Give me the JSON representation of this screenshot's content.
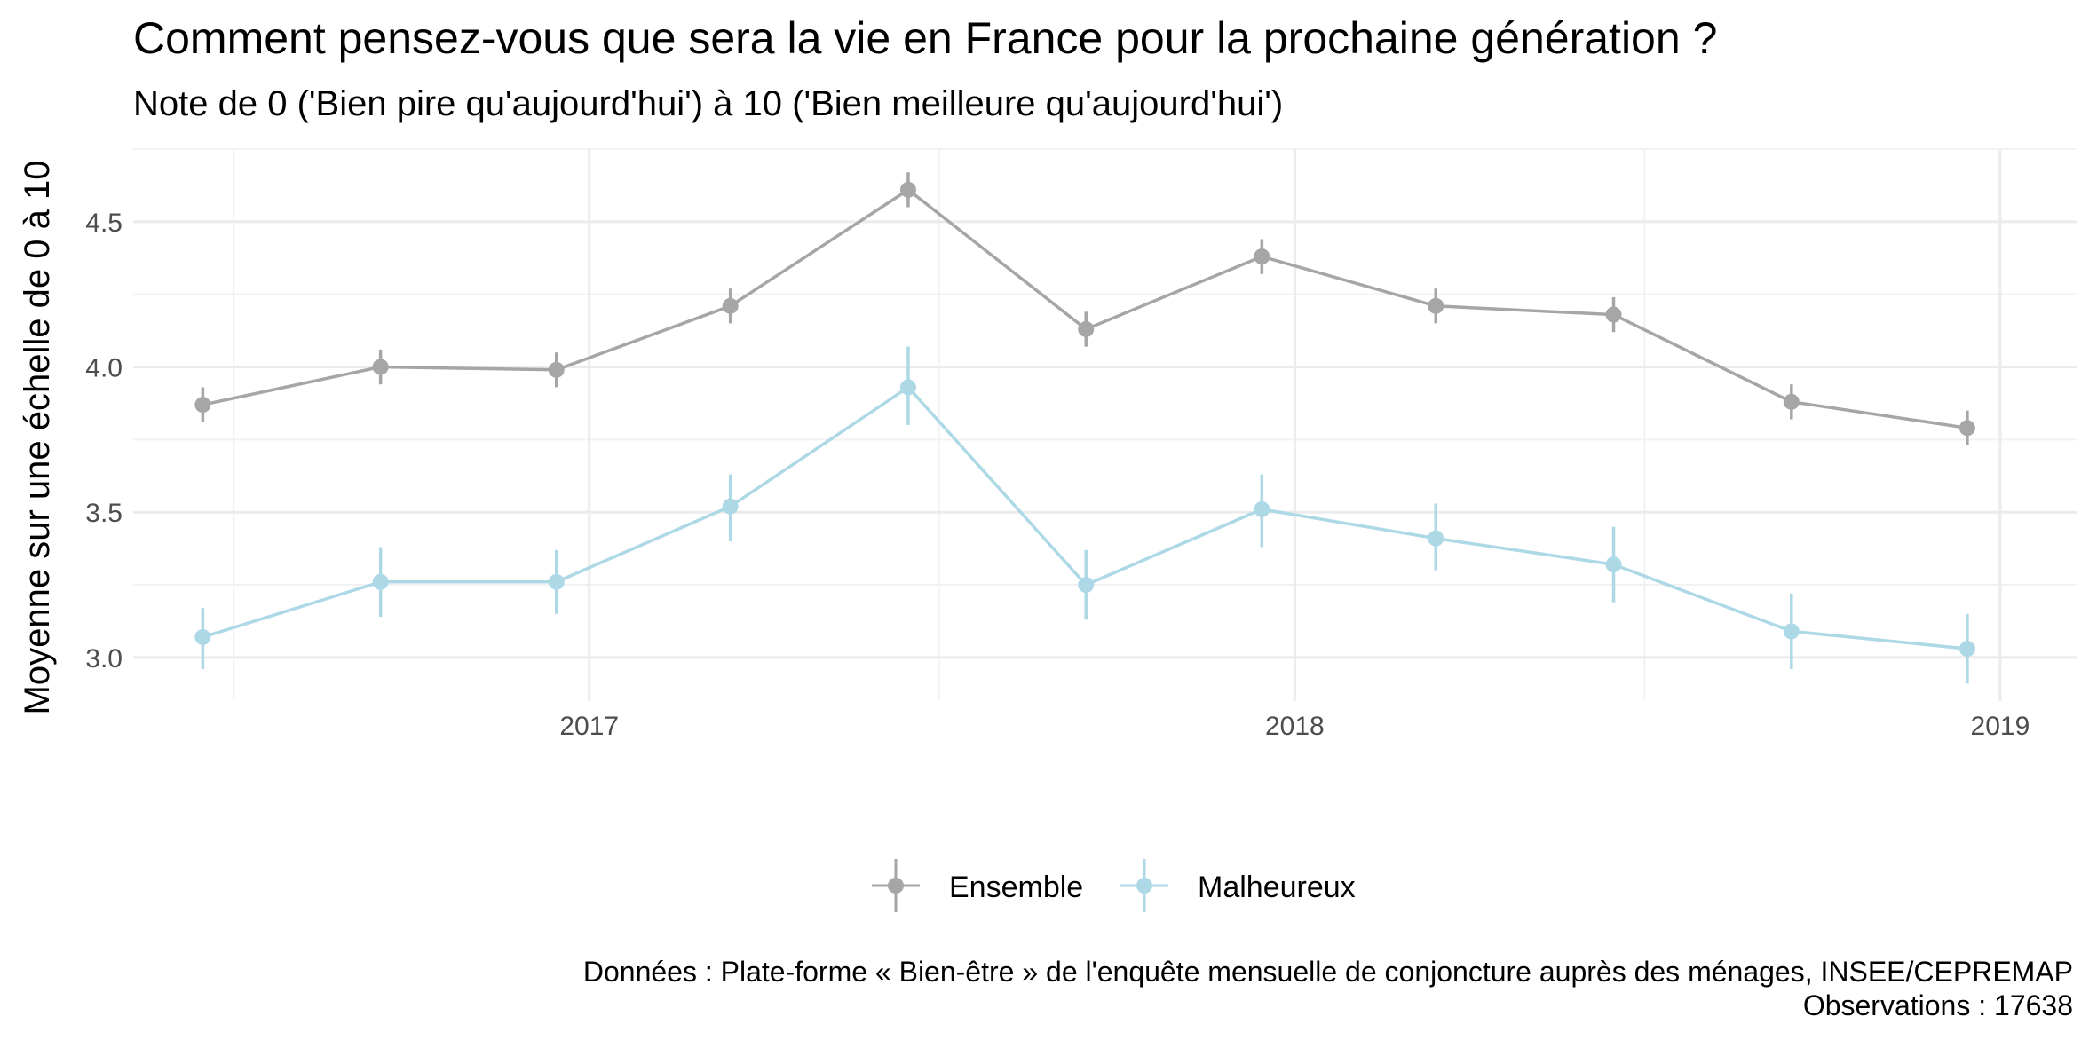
{
  "chart_data": {
    "type": "line",
    "title": "Comment pensez-vous que sera la vie en France pour la prochaine génération ?",
    "subtitle": "Note de 0 ('Bien pire qu'aujourd'hui') à 10 ('Bien meilleure qu'aujourd'hui')",
    "xlabel": "",
    "ylabel": "Moyenne sur une échelle de 0 à 10",
    "x_ticks": [
      "2017",
      "2018",
      "2019"
    ],
    "y_ticks": [
      "3.0",
      "3.5",
      "4.0",
      "4.5"
    ],
    "xlim": [
      "2016-05-10",
      "2019-02-10"
    ],
    "ylim": [
      2.85,
      4.75
    ],
    "grid": true,
    "legend_position": "bottom",
    "x": [
      "2016-06-15",
      "2016-09-15",
      "2016-12-15",
      "2017-03-15",
      "2017-06-15",
      "2017-09-15",
      "2017-12-15",
      "2018-03-15",
      "2018-06-15",
      "2018-09-15",
      "2018-12-15"
    ],
    "series": [
      {
        "name": "Ensemble",
        "color": "#a6a6a6",
        "values": [
          3.87,
          4.0,
          3.99,
          4.21,
          4.61,
          4.13,
          4.38,
          4.21,
          4.18,
          3.88,
          3.79
        ],
        "lower": [
          3.81,
          3.94,
          3.93,
          4.15,
          4.55,
          4.07,
          4.32,
          4.15,
          4.12,
          3.82,
          3.73
        ],
        "upper": [
          3.93,
          4.06,
          4.05,
          4.27,
          4.67,
          4.19,
          4.44,
          4.27,
          4.24,
          3.94,
          3.85
        ]
      },
      {
        "name": "Malheureux",
        "color": "#add8e6",
        "values": [
          3.07,
          3.26,
          3.26,
          3.52,
          3.93,
          3.25,
          3.51,
          3.41,
          3.32,
          3.09,
          3.03
        ],
        "lower": [
          2.96,
          3.14,
          3.15,
          3.4,
          3.8,
          3.13,
          3.38,
          3.3,
          3.19,
          2.96,
          2.91
        ],
        "upper": [
          3.17,
          3.38,
          3.37,
          3.63,
          4.07,
          3.37,
          3.63,
          3.53,
          3.45,
          3.22,
          3.15
        ]
      }
    ],
    "caption_line1": "Données : Plate-forme « Bien-être » de l'enquête mensuelle de conjoncture auprès des ménages, INSEE/CEPREMAP",
    "caption_line2": "Observations : 17638"
  }
}
